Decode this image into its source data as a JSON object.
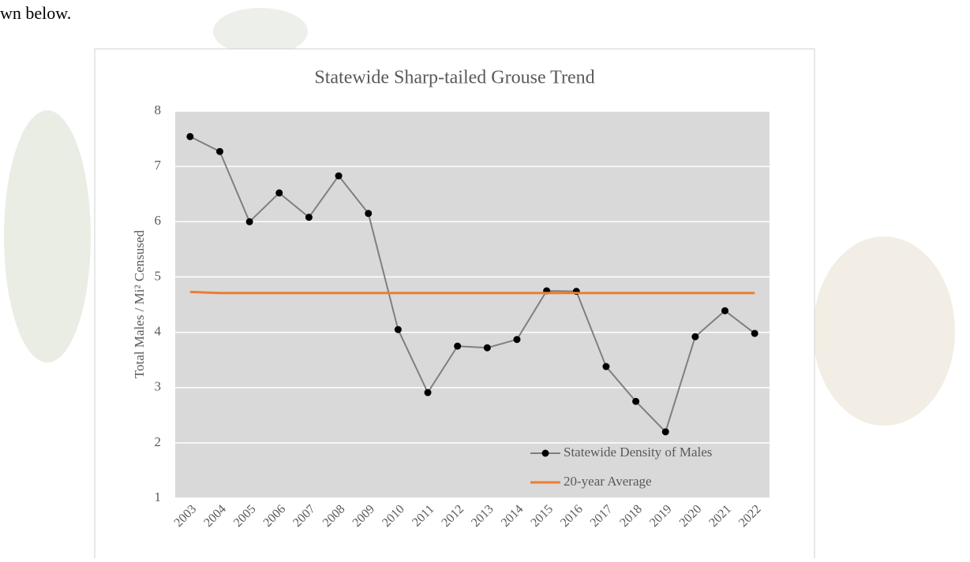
{
  "document": {
    "text_fragment": "wn below."
  },
  "chart_data": {
    "type": "line",
    "title": "Statewide Sharp-tailed Grouse Trend",
    "y_label": "Total Males  / Mi² Censused",
    "categories": [
      "2003",
      "2004",
      "2005",
      "2006",
      "2007",
      "2008",
      "2009",
      "2010",
      "2011",
      "2012",
      "2013",
      "2014",
      "2015",
      "2016",
      "2017",
      "2018",
      "2019",
      "2020",
      "2021",
      "2022"
    ],
    "series": [
      {
        "name": "Statewide Density of Males",
        "color": "#7f7f7f",
        "marker_color": "#000000",
        "markers": true,
        "values": [
          7.54,
          7.27,
          6.0,
          6.52,
          6.08,
          6.83,
          6.15,
          4.05,
          2.91,
          3.75,
          3.72,
          3.87,
          4.75,
          4.74,
          3.38,
          2.75,
          2.2,
          3.92,
          4.39,
          3.98
        ]
      },
      {
        "name": "20-year Average",
        "color": "#ed7d31",
        "markers": false,
        "values": [
          4.73,
          4.71,
          4.71,
          4.71,
          4.71,
          4.71,
          4.71,
          4.71,
          4.71,
          4.71,
          4.71,
          4.71,
          4.71,
          4.71,
          4.71,
          4.71,
          4.71,
          4.71,
          4.71,
          4.71
        ]
      }
    ],
    "ylim": [
      1,
      8
    ],
    "yticks": [
      1,
      2,
      3,
      4,
      5,
      6,
      7,
      8
    ],
    "grid": true,
    "grid_color": "#ffffff",
    "plot_background": "#d9d9d9",
    "legend_position": "bottom-right"
  }
}
